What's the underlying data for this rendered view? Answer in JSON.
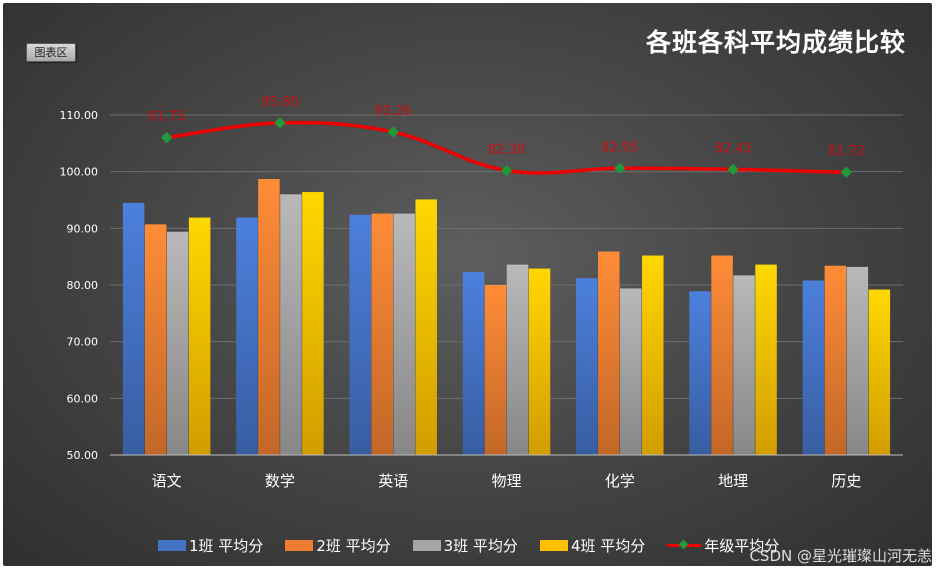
{
  "chart_data": {
    "type": "bar",
    "title": "各班各科平均成绩比较",
    "area_tag": "图表区",
    "categories": [
      "语文",
      "数学",
      "英语",
      "物理",
      "化学",
      "地理",
      "历史"
    ],
    "ylim": [
      50,
      110
    ],
    "yticks": [
      "50.00",
      "60.00",
      "70.00",
      "80.00",
      "90.00",
      "100.00",
      "110.00"
    ],
    "grid": true,
    "legend_position": "bottom",
    "series": [
      {
        "name": "1班 平均分",
        "color": "#4472c4",
        "values": [
          94.5,
          91.9,
          92.4,
          82.3,
          81.2,
          78.9,
          80.8
        ]
      },
      {
        "name": "2班 平均分",
        "color": "#ed7d31",
        "values": [
          90.7,
          98.7,
          92.6,
          80.0,
          85.9,
          85.2,
          83.4
        ]
      },
      {
        "name": "3班 平均分",
        "color": "#a5a5a5",
        "values": [
          89.4,
          96.0,
          92.6,
          83.6,
          79.4,
          81.7,
          83.2
        ]
      },
      {
        "name": "4班 平均分",
        "color": "#ffc000",
        "values": [
          91.9,
          96.4,
          95.1,
          82.9,
          85.2,
          83.6,
          79.2
        ]
      }
    ],
    "line_series": {
      "name": "年级平均分",
      "color": "#ee0000",
      "marker_color": "#1f9a3a",
      "plotted": [
        106.0,
        108.6,
        107.0,
        100.2,
        100.6,
        100.4,
        99.9
      ],
      "labels": [
        "91.75",
        "95.80",
        "93.26",
        "82.30",
        "82.95",
        "82.43",
        "81.72"
      ]
    }
  },
  "watermark": "CSDN @星光璀璨山河无恙"
}
